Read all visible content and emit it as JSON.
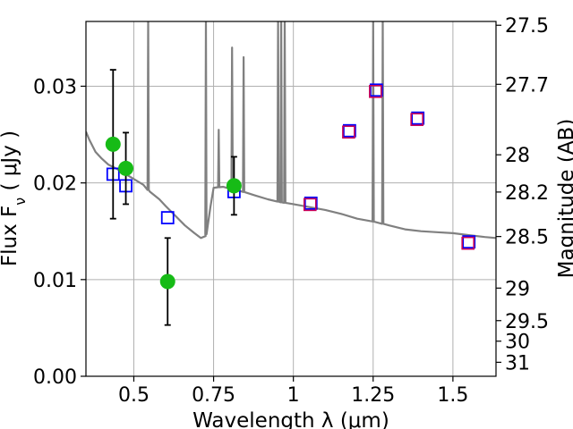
{
  "chart_data": {
    "type": "scatter",
    "xlabel": "Wavelength  λ (μm)",
    "ylabel": "Flux  F",
    "ylabel_sub": "ν",
    "ylabel_tail": "  ( μJy )",
    "y2label": "Magnitude (AB)",
    "xlim": [
      0.35,
      1.635
    ],
    "ylim": [
      0.0,
      0.0367
    ],
    "grid": true,
    "x_ticks": [
      {
        "value": 0.5,
        "label": "0.5"
      },
      {
        "value": 0.75,
        "label": "0.75"
      },
      {
        "value": 1.0,
        "label": "1"
      },
      {
        "value": 1.25,
        "label": "1.25"
      },
      {
        "value": 1.5,
        "label": "1.5"
      }
    ],
    "y_ticks": [
      {
        "value": 0.0,
        "label": "0.00"
      },
      {
        "value": 0.01,
        "label": "0.01"
      },
      {
        "value": 0.02,
        "label": "0.02"
      },
      {
        "value": 0.03,
        "label": "0.03"
      }
    ],
    "y2_ticks": [
      {
        "value": 27.5,
        "label": "27.5"
      },
      {
        "value": 27.7,
        "label": "27.7"
      },
      {
        "value": 28.0,
        "label": "28"
      },
      {
        "value": 28.2,
        "label": "28.2"
      },
      {
        "value": 28.5,
        "label": "28.5"
      },
      {
        "value": 29.0,
        "label": "29"
      },
      {
        "value": 29.5,
        "label": "29.5"
      },
      {
        "value": 30.0,
        "label": "30"
      },
      {
        "value": 31.0,
        "label": "31"
      }
    ],
    "colors": {
      "template": "#808080",
      "observed": "#16bb16",
      "errorbar": "#000000",
      "model_blue": "#0000ff",
      "model_red": "#cc0055",
      "grid": "#b0b0b0"
    },
    "observed": [
      {
        "x": 0.435,
        "y": 0.024,
        "err": 0.0077
      },
      {
        "x": 0.475,
        "y": 0.0215,
        "err": 0.0037
      },
      {
        "x": 0.606,
        "y": 0.0098,
        "err": 0.0045
      },
      {
        "x": 0.814,
        "y": 0.0197,
        "err": 0.003
      }
    ],
    "model_blue_squares": [
      {
        "x": 0.435,
        "y": 0.0209
      },
      {
        "x": 0.475,
        "y": 0.0197
      },
      {
        "x": 0.606,
        "y": 0.0164
      },
      {
        "x": 0.814,
        "y": 0.0191
      }
    ],
    "model_both_squares": [
      {
        "x": 1.055,
        "y": 0.0179
      },
      {
        "x": 1.176,
        "y": 0.0254
      },
      {
        "x": 1.26,
        "y": 0.0296
      },
      {
        "x": 1.39,
        "y": 0.0267
      },
      {
        "x": 1.55,
        "y": 0.0139
      }
    ],
    "template_continuum": [
      [
        0.35,
        0.0253
      ],
      [
        0.36,
        0.0245
      ],
      [
        0.38,
        0.0232
      ],
      [
        0.4,
        0.0225
      ],
      [
        0.42,
        0.0219
      ],
      [
        0.45,
        0.0214
      ],
      [
        0.48,
        0.0208
      ],
      [
        0.5,
        0.0204
      ],
      [
        0.53,
        0.0198
      ],
      [
        0.55,
        0.0191
      ],
      [
        0.58,
        0.0183
      ],
      [
        0.6,
        0.0176
      ],
      [
        0.63,
        0.0166
      ],
      [
        0.66,
        0.0156
      ],
      [
        0.69,
        0.0148
      ],
      [
        0.71,
        0.0143
      ],
      [
        0.725,
        0.0145
      ],
      [
        0.74,
        0.0175
      ],
      [
        0.75,
        0.0195
      ],
      [
        0.78,
        0.0196
      ],
      [
        0.8,
        0.0194
      ],
      [
        0.84,
        0.0191
      ],
      [
        0.88,
        0.0187
      ],
      [
        0.92,
        0.0183
      ],
      [
        0.96,
        0.018
      ],
      [
        1.0,
        0.0178
      ],
      [
        1.05,
        0.0175
      ],
      [
        1.1,
        0.0172
      ],
      [
        1.15,
        0.0168
      ],
      [
        1.2,
        0.0163
      ],
      [
        1.25,
        0.016
      ],
      [
        1.3,
        0.0156
      ],
      [
        1.35,
        0.0152
      ],
      [
        1.4,
        0.015
      ],
      [
        1.45,
        0.0149
      ],
      [
        1.5,
        0.0148
      ],
      [
        1.55,
        0.0146
      ],
      [
        1.6,
        0.0144
      ],
      [
        1.635,
        0.0143
      ]
    ],
    "template_spikes": [
      {
        "x": 0.545,
        "y": 0.037
      },
      {
        "x": 0.726,
        "y": 0.037
      },
      {
        "x": 0.766,
        "y": 0.0255
      },
      {
        "x": 0.808,
        "y": 0.034
      },
      {
        "x": 0.844,
        "y": 0.033
      },
      {
        "x": 0.952,
        "y": 0.037
      },
      {
        "x": 0.962,
        "y": 0.037
      },
      {
        "x": 0.973,
        "y": 0.037
      },
      {
        "x": 1.25,
        "y": 0.037
      },
      {
        "x": 1.28,
        "y": 0.037
      }
    ]
  }
}
